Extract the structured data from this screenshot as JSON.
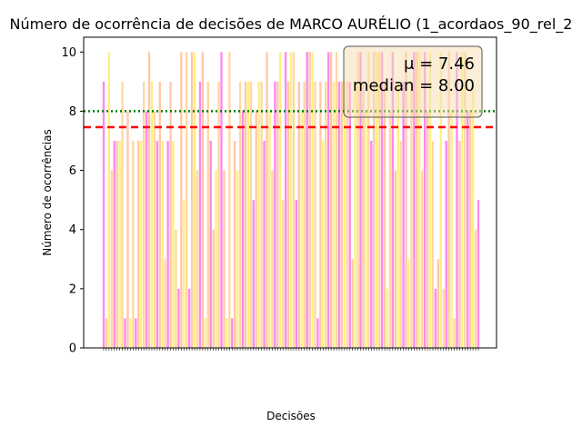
{
  "chart_data": {
    "type": "bar",
    "title": "Número de ocorrência de decisões de MARCO AURÉLIO (1_acordaos_90_rel_2",
    "xlabel": "Decisões",
    "ylabel": "Número de ocorrências",
    "ylim": [
      0,
      10.5
    ],
    "yticks": [
      "0",
      "2",
      "4",
      "6",
      "8",
      "10"
    ],
    "mean": 7.46,
    "median": 8.0,
    "mean_label": "μ = 7.46",
    "median_label": "median = 8.00",
    "bar_colors": [
      "#ff88ee",
      "#ffc8a8",
      "#fff080",
      "#ffd8a0"
    ],
    "mean_line_color": "#ff0000",
    "median_line_color": "#008000",
    "values": [
      9,
      1,
      10,
      6,
      7,
      7,
      7,
      9,
      1,
      8,
      1,
      7,
      1,
      7,
      7,
      9,
      8,
      10,
      9,
      8,
      7,
      9,
      7,
      3,
      7,
      9,
      7,
      4,
      2,
      10,
      5,
      10,
      2,
      10,
      10,
      6,
      9,
      10,
      1,
      9,
      7,
      4,
      6,
      9,
      10,
      6,
      1,
      10,
      1,
      7,
      6,
      9,
      8,
      9,
      9,
      9,
      5,
      8,
      9,
      9,
      7,
      10,
      8,
      6,
      9,
      9,
      10,
      5,
      10,
      9,
      10,
      10,
      5,
      9,
      8,
      9,
      10,
      10,
      10,
      9,
      1,
      9,
      7,
      9,
      10,
      10,
      9,
      10,
      9,
      9,
      9,
      9,
      9,
      3,
      9,
      10,
      10,
      9,
      8,
      10,
      7,
      10,
      10,
      10,
      10,
      9,
      2,
      8,
      10,
      6,
      9,
      7,
      9,
      10,
      3,
      9,
      10,
      10,
      10,
      6,
      10,
      8,
      10,
      7,
      2,
      3,
      10,
      2,
      7,
      10,
      8,
      1,
      10,
      7,
      10,
      10,
      8,
      8,
      9,
      4,
      5
    ]
  }
}
